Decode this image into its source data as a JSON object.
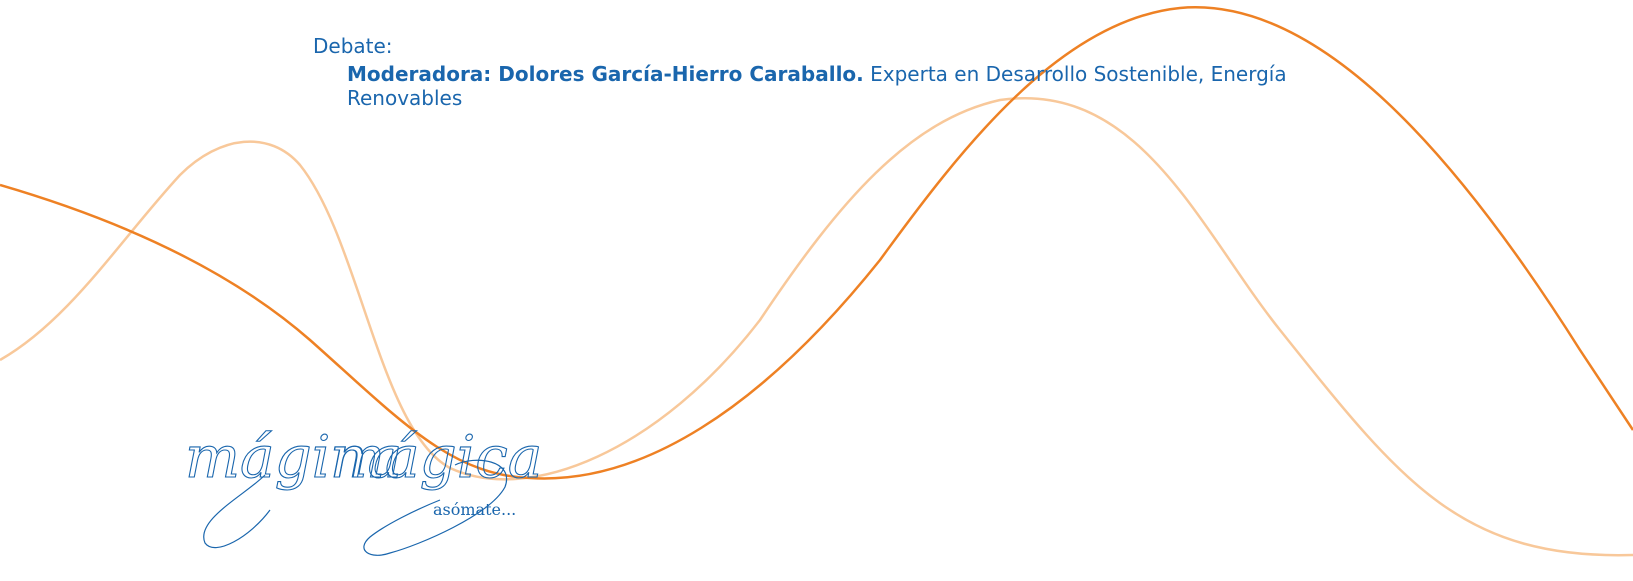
{
  "debate": {
    "label": "Debate:",
    "moderator": "Moderadora: Dolores García-Hierro Caraballo.",
    "description": " Experta en Desarrollo Sostenible,  Energía Renovables"
  },
  "logo": {
    "word1": "mágina",
    "word2": "mágica",
    "tagline": "asómate..."
  },
  "colors": {
    "text": "#1a66ad",
    "wave_dark": "#ee8124",
    "wave_light": "#f8c89a"
  }
}
